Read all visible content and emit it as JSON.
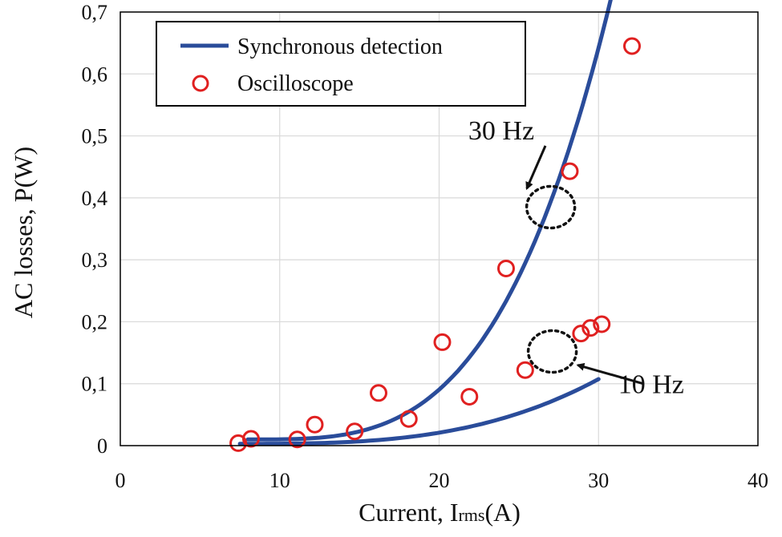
{
  "chart_data": {
    "type": "line",
    "title": "",
    "xlabel_main": "Current, I",
    "xlabel_sub": "rms",
    "xlabel_tail": "(A)",
    "ylabel": "AC losses, P(W)",
    "xlim": [
      0,
      40
    ],
    "ylim": [
      0,
      0.7
    ],
    "xticks": [
      0,
      10,
      20,
      30,
      40
    ],
    "xtick_labels": [
      "0",
      "10",
      "20",
      "30",
      "40"
    ],
    "yticks": [
      0,
      0.1,
      0.2,
      0.3,
      0.4,
      0.5,
      0.6,
      0.7
    ],
    "ytick_labels": [
      "0",
      "0,1",
      "0,2",
      "0,3",
      "0,4",
      "0,5",
      "0,6",
      "0,7"
    ],
    "grid": true,
    "legend_position": "top-left",
    "legend": [
      {
        "label": "Synchronous detection",
        "style": "line"
      },
      {
        "label": "Oscilloscope",
        "style": "circle"
      }
    ],
    "series": [
      {
        "name": "30 Hz",
        "curve": {
          "x0": 8,
          "x1": 32,
          "a": 0.01,
          "b": 0.0433,
          "p": 3.4
        },
        "points": [
          {
            "x": 8.2,
            "y": 0.011
          },
          {
            "x": 12.2,
            "y": 0.034
          },
          {
            "x": 16.2,
            "y": 0.085
          },
          {
            "x": 20.2,
            "y": 0.167
          },
          {
            "x": 24.2,
            "y": 0.286
          },
          {
            "x": 28.2,
            "y": 0.443
          },
          {
            "x": 32.1,
            "y": 0.645
          }
        ]
      },
      {
        "name": "10 Hz",
        "curve": {
          "x0": 7.5,
          "x1": 30,
          "a": 0.003,
          "b": 0.00917,
          "p": 3.0
        },
        "points": [
          {
            "x": 7.4,
            "y": 0.004
          },
          {
            "x": 11.1,
            "y": 0.01
          },
          {
            "x": 14.7,
            "y": 0.023
          },
          {
            "x": 18.1,
            "y": 0.043
          },
          {
            "x": 21.9,
            "y": 0.079
          },
          {
            "x": 25.4,
            "y": 0.122
          },
          {
            "x": 28.9,
            "y": 0.181
          },
          {
            "x": 29.5,
            "y": 0.19
          },
          {
            "x": 30.2,
            "y": 0.196
          }
        ]
      }
    ],
    "annotations": [
      {
        "text": "30 Hz",
        "target_x": 27,
        "target_y": 0.385,
        "text_x": 23.9,
        "text_y": 0.51,
        "arrow_to_x": 25.5,
        "arrow_to_y": 0.415
      },
      {
        "text": "10 Hz",
        "target_x": 27.1,
        "target_y": 0.152,
        "text_x": 33.3,
        "text_y": 0.1,
        "arrow_to_x": 28.7,
        "arrow_to_y": 0.13
      }
    ],
    "colors": {
      "line": "#2a4c9a",
      "marker": "#e02020",
      "grid": "#d9d9d9",
      "axis": "#000000",
      "annotation": "#111111"
    }
  }
}
